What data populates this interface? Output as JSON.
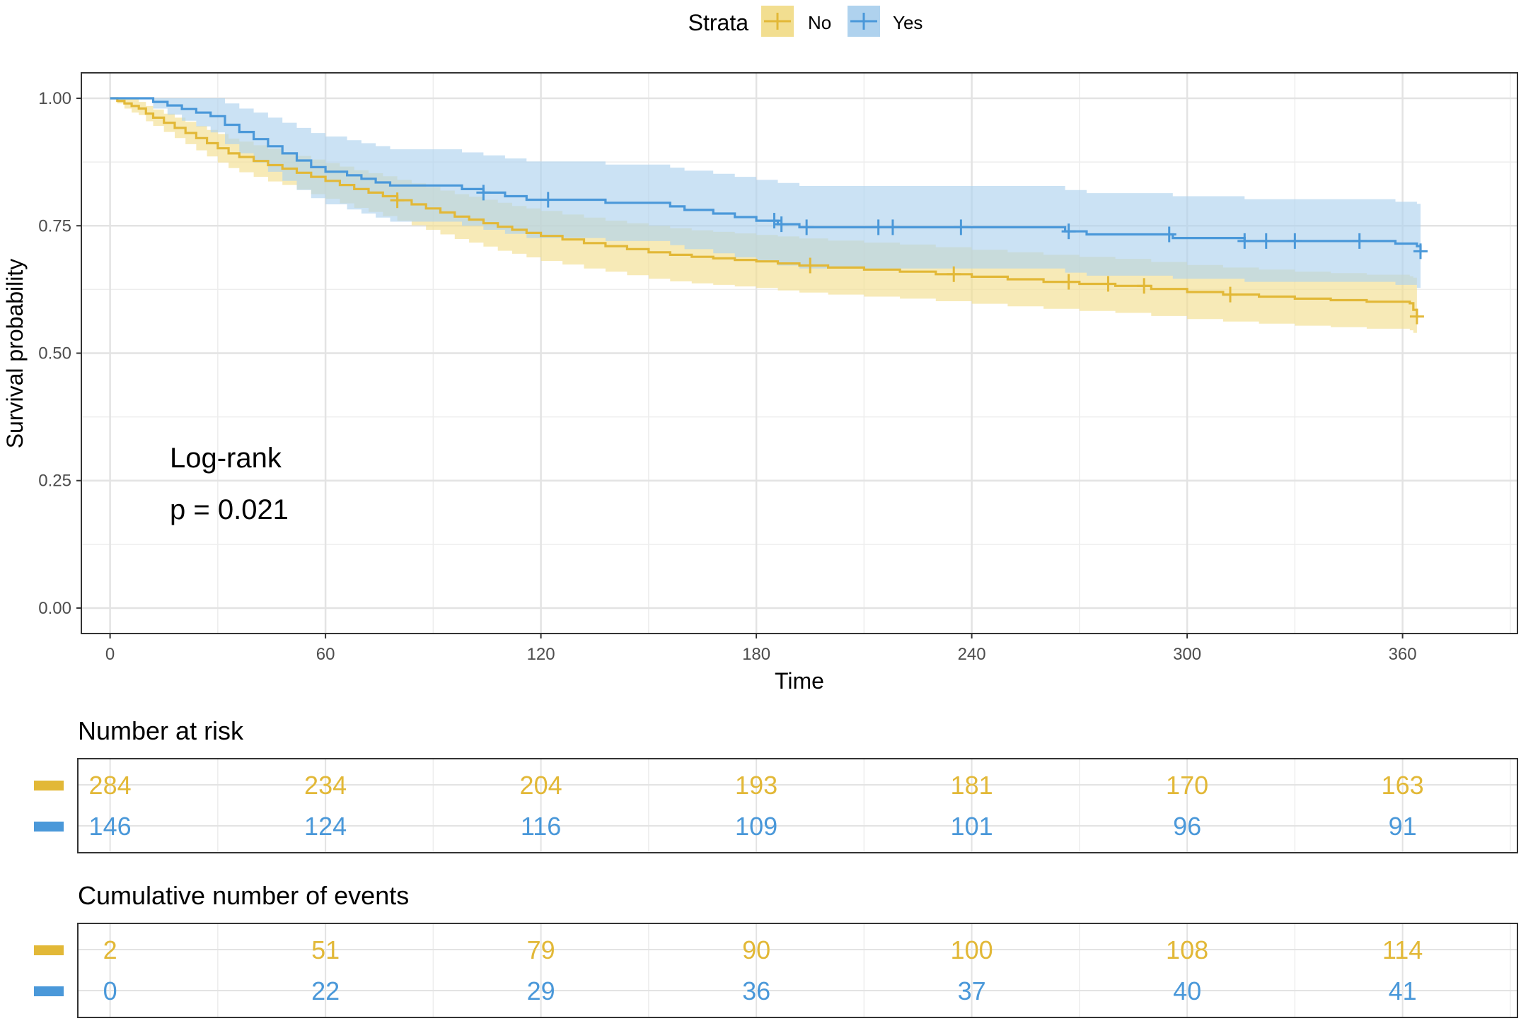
{
  "chart_data": {
    "type": "line",
    "title": "",
    "xlabel": "Time",
    "ylabel": "Survival probability",
    "xlim": [
      -8,
      392
    ],
    "ylim": [
      -0.05,
      1.05
    ],
    "x_ticks": [
      "0",
      "60",
      "120",
      "180",
      "240",
      "300",
      "360"
    ],
    "y_ticks": [
      "0.00",
      "0.25",
      "0.50",
      "0.75",
      "1.00"
    ],
    "grid": true,
    "legend": {
      "title": "Strata",
      "position": "top",
      "entries": [
        "No",
        "Yes"
      ]
    },
    "annotation": {
      "line1": "Log-rank",
      "line2": "p = 0.021"
    },
    "series": [
      {
        "name": "No",
        "color": "#E2B837",
        "fill": "#F2DE90",
        "points": [
          [
            0,
            1.0
          ],
          [
            2,
            0.995
          ],
          [
            4,
            0.99
          ],
          [
            6,
            0.985
          ],
          [
            8,
            0.98
          ],
          [
            10,
            0.97
          ],
          [
            12,
            0.962
          ],
          [
            15,
            0.952
          ],
          [
            18,
            0.942
          ],
          [
            21,
            0.932
          ],
          [
            24,
            0.922
          ],
          [
            27,
            0.912
          ],
          [
            30,
            0.902
          ],
          [
            33,
            0.892
          ],
          [
            36,
            0.885
          ],
          [
            40,
            0.877
          ],
          [
            44,
            0.869
          ],
          [
            48,
            0.862
          ],
          [
            52,
            0.854
          ],
          [
            56,
            0.846
          ],
          [
            60,
            0.838
          ],
          [
            64,
            0.83
          ],
          [
            68,
            0.822
          ],
          [
            72,
            0.815
          ],
          [
            76,
            0.808
          ],
          [
            80,
            0.8
          ],
          [
            84,
            0.792
          ],
          [
            88,
            0.784
          ],
          [
            92,
            0.776
          ],
          [
            96,
            0.768
          ],
          [
            100,
            0.762
          ],
          [
            104,
            0.755
          ],
          [
            108,
            0.748
          ],
          [
            112,
            0.742
          ],
          [
            116,
            0.736
          ],
          [
            120,
            0.73
          ],
          [
            126,
            0.723
          ],
          [
            132,
            0.716
          ],
          [
            138,
            0.71
          ],
          [
            144,
            0.704
          ],
          [
            150,
            0.698
          ],
          [
            156,
            0.693
          ],
          [
            162,
            0.689
          ],
          [
            168,
            0.686
          ],
          [
            174,
            0.683
          ],
          [
            180,
            0.68
          ],
          [
            186,
            0.676
          ],
          [
            192,
            0.672
          ],
          [
            200,
            0.668
          ],
          [
            210,
            0.664
          ],
          [
            220,
            0.66
          ],
          [
            230,
            0.655
          ],
          [
            240,
            0.65
          ],
          [
            250,
            0.645
          ],
          [
            260,
            0.64
          ],
          [
            270,
            0.636
          ],
          [
            280,
            0.632
          ],
          [
            290,
            0.626
          ],
          [
            300,
            0.62
          ],
          [
            310,
            0.615
          ],
          [
            320,
            0.611
          ],
          [
            330,
            0.607
          ],
          [
            340,
            0.604
          ],
          [
            350,
            0.601
          ],
          [
            362,
            0.598
          ],
          [
            363,
            0.585
          ],
          [
            364,
            0.572
          ]
        ],
        "ci_upper": [
          1.0,
          1.0,
          1.0,
          0.998,
          0.993,
          0.985,
          0.978,
          0.97,
          0.962,
          0.954,
          0.946,
          0.938,
          0.93,
          0.921,
          0.915,
          0.908,
          0.901,
          0.894,
          0.887,
          0.88,
          0.873,
          0.866,
          0.859,
          0.853,
          0.847,
          0.84,
          0.833,
          0.826,
          0.819,
          0.812,
          0.807,
          0.801,
          0.795,
          0.789,
          0.784,
          0.779,
          0.772,
          0.766,
          0.76,
          0.755,
          0.75,
          0.745,
          0.741,
          0.738,
          0.735,
          0.732,
          0.729,
          0.725,
          0.721,
          0.717,
          0.713,
          0.708,
          0.703,
          0.698,
          0.693,
          0.689,
          0.685,
          0.679,
          0.673,
          0.668,
          0.664,
          0.66,
          0.657,
          0.654,
          0.651,
          0.648,
          0.648
        ],
        "ci_lower": [
          1.0,
          0.99,
          0.98,
          0.972,
          0.967,
          0.955,
          0.946,
          0.934,
          0.922,
          0.91,
          0.898,
          0.886,
          0.874,
          0.863,
          0.855,
          0.846,
          0.837,
          0.83,
          0.821,
          0.812,
          0.803,
          0.794,
          0.785,
          0.777,
          0.769,
          0.76,
          0.751,
          0.742,
          0.733,
          0.724,
          0.717,
          0.709,
          0.701,
          0.695,
          0.688,
          0.681,
          0.674,
          0.666,
          0.66,
          0.653,
          0.646,
          0.641,
          0.637,
          0.634,
          0.631,
          0.628,
          0.623,
          0.619,
          0.615,
          0.611,
          0.607,
          0.602,
          0.597,
          0.592,
          0.587,
          0.583,
          0.579,
          0.573,
          0.567,
          0.562,
          0.558,
          0.554,
          0.551,
          0.548,
          0.545,
          0.54,
          0.54
        ],
        "censor": [
          80,
          195,
          235,
          267,
          278,
          288,
          312,
          364
        ]
      },
      {
        "name": "Yes",
        "color": "#4A98D9",
        "fill": "#AFD2EE",
        "points": [
          [
            0,
            1.0
          ],
          [
            8,
            1.0
          ],
          [
            12,
            0.993
          ],
          [
            16,
            0.986
          ],
          [
            20,
            0.979
          ],
          [
            24,
            0.972
          ],
          [
            28,
            0.965
          ],
          [
            32,
            0.948
          ],
          [
            36,
            0.934
          ],
          [
            40,
            0.92
          ],
          [
            44,
            0.906
          ],
          [
            48,
            0.892
          ],
          [
            52,
            0.878
          ],
          [
            56,
            0.865
          ],
          [
            60,
            0.856
          ],
          [
            66,
            0.849
          ],
          [
            70,
            0.842
          ],
          [
            74,
            0.835
          ],
          [
            78,
            0.829
          ],
          [
            85,
            0.829
          ],
          [
            94,
            0.829
          ],
          [
            98,
            0.822
          ],
          [
            104,
            0.815
          ],
          [
            110,
            0.808
          ],
          [
            116,
            0.801
          ],
          [
            124,
            0.801
          ],
          [
            132,
            0.801
          ],
          [
            138,
            0.795
          ],
          [
            144,
            0.795
          ],
          [
            150,
            0.795
          ],
          [
            156,
            0.788
          ],
          [
            160,
            0.781
          ],
          [
            168,
            0.774
          ],
          [
            174,
            0.767
          ],
          [
            180,
            0.76
          ],
          [
            186,
            0.753
          ],
          [
            192,
            0.747
          ],
          [
            210,
            0.747
          ],
          [
            230,
            0.747
          ],
          [
            250,
            0.747
          ],
          [
            260,
            0.747
          ],
          [
            266,
            0.739
          ],
          [
            272,
            0.733
          ],
          [
            280,
            0.733
          ],
          [
            292,
            0.733
          ],
          [
            296,
            0.726
          ],
          [
            305,
            0.726
          ],
          [
            316,
            0.72
          ],
          [
            325,
            0.72
          ],
          [
            340,
            0.72
          ],
          [
            348,
            0.72
          ],
          [
            358,
            0.715
          ],
          [
            364,
            0.71
          ],
          [
            365,
            0.7
          ]
        ],
        "ci_upper": [
          1.0,
          1.0,
          1.0,
          1.0,
          1.0,
          1.0,
          1.0,
          0.99,
          0.98,
          0.972,
          0.962,
          0.952,
          0.942,
          0.932,
          0.925,
          0.918,
          0.912,
          0.906,
          0.9,
          0.9,
          0.9,
          0.894,
          0.888,
          0.882,
          0.876,
          0.876,
          0.876,
          0.87,
          0.87,
          0.87,
          0.864,
          0.858,
          0.852,
          0.846,
          0.84,
          0.834,
          0.828,
          0.828,
          0.828,
          0.828,
          0.828,
          0.82,
          0.814,
          0.814,
          0.814,
          0.808,
          0.808,
          0.802,
          0.802,
          0.802,
          0.802,
          0.797,
          0.793,
          0.793
        ],
        "ci_lower": [
          1.0,
          1.0,
          0.98,
          0.968,
          0.956,
          0.945,
          0.933,
          0.91,
          0.892,
          0.874,
          0.856,
          0.838,
          0.82,
          0.804,
          0.792,
          0.782,
          0.774,
          0.766,
          0.758,
          0.758,
          0.758,
          0.75,
          0.742,
          0.734,
          0.726,
          0.726,
          0.726,
          0.72,
          0.72,
          0.72,
          0.712,
          0.704,
          0.696,
          0.688,
          0.68,
          0.672,
          0.666,
          0.666,
          0.666,
          0.666,
          0.666,
          0.658,
          0.652,
          0.652,
          0.652,
          0.646,
          0.646,
          0.64,
          0.64,
          0.64,
          0.64,
          0.634,
          0.628,
          0.62
        ],
        "censor": [
          104,
          122,
          185,
          187,
          194,
          214,
          218,
          237,
          267,
          295,
          316,
          322,
          330,
          348,
          365
        ]
      }
    ],
    "risk_table": {
      "title": "Number at risk",
      "times": [
        0,
        60,
        120,
        180,
        240,
        300,
        360
      ],
      "rows": [
        {
          "name": "No",
          "values": [
            "284",
            "234",
            "204",
            "193",
            "181",
            "170",
            "163"
          ]
        },
        {
          "name": "Yes",
          "values": [
            "146",
            "124",
            "116",
            "109",
            "101",
            "96",
            "91"
          ]
        }
      ]
    },
    "events_table": {
      "title": "Cumulative number of events",
      "times": [
        0,
        60,
        120,
        180,
        240,
        300,
        360
      ],
      "rows": [
        {
          "name": "No",
          "values": [
            "2",
            "51",
            "79",
            "90",
            "100",
            "108",
            "114"
          ]
        },
        {
          "name": "Yes",
          "values": [
            "0",
            "22",
            "29",
            "36",
            "37",
            "40",
            "41"
          ]
        }
      ]
    }
  }
}
